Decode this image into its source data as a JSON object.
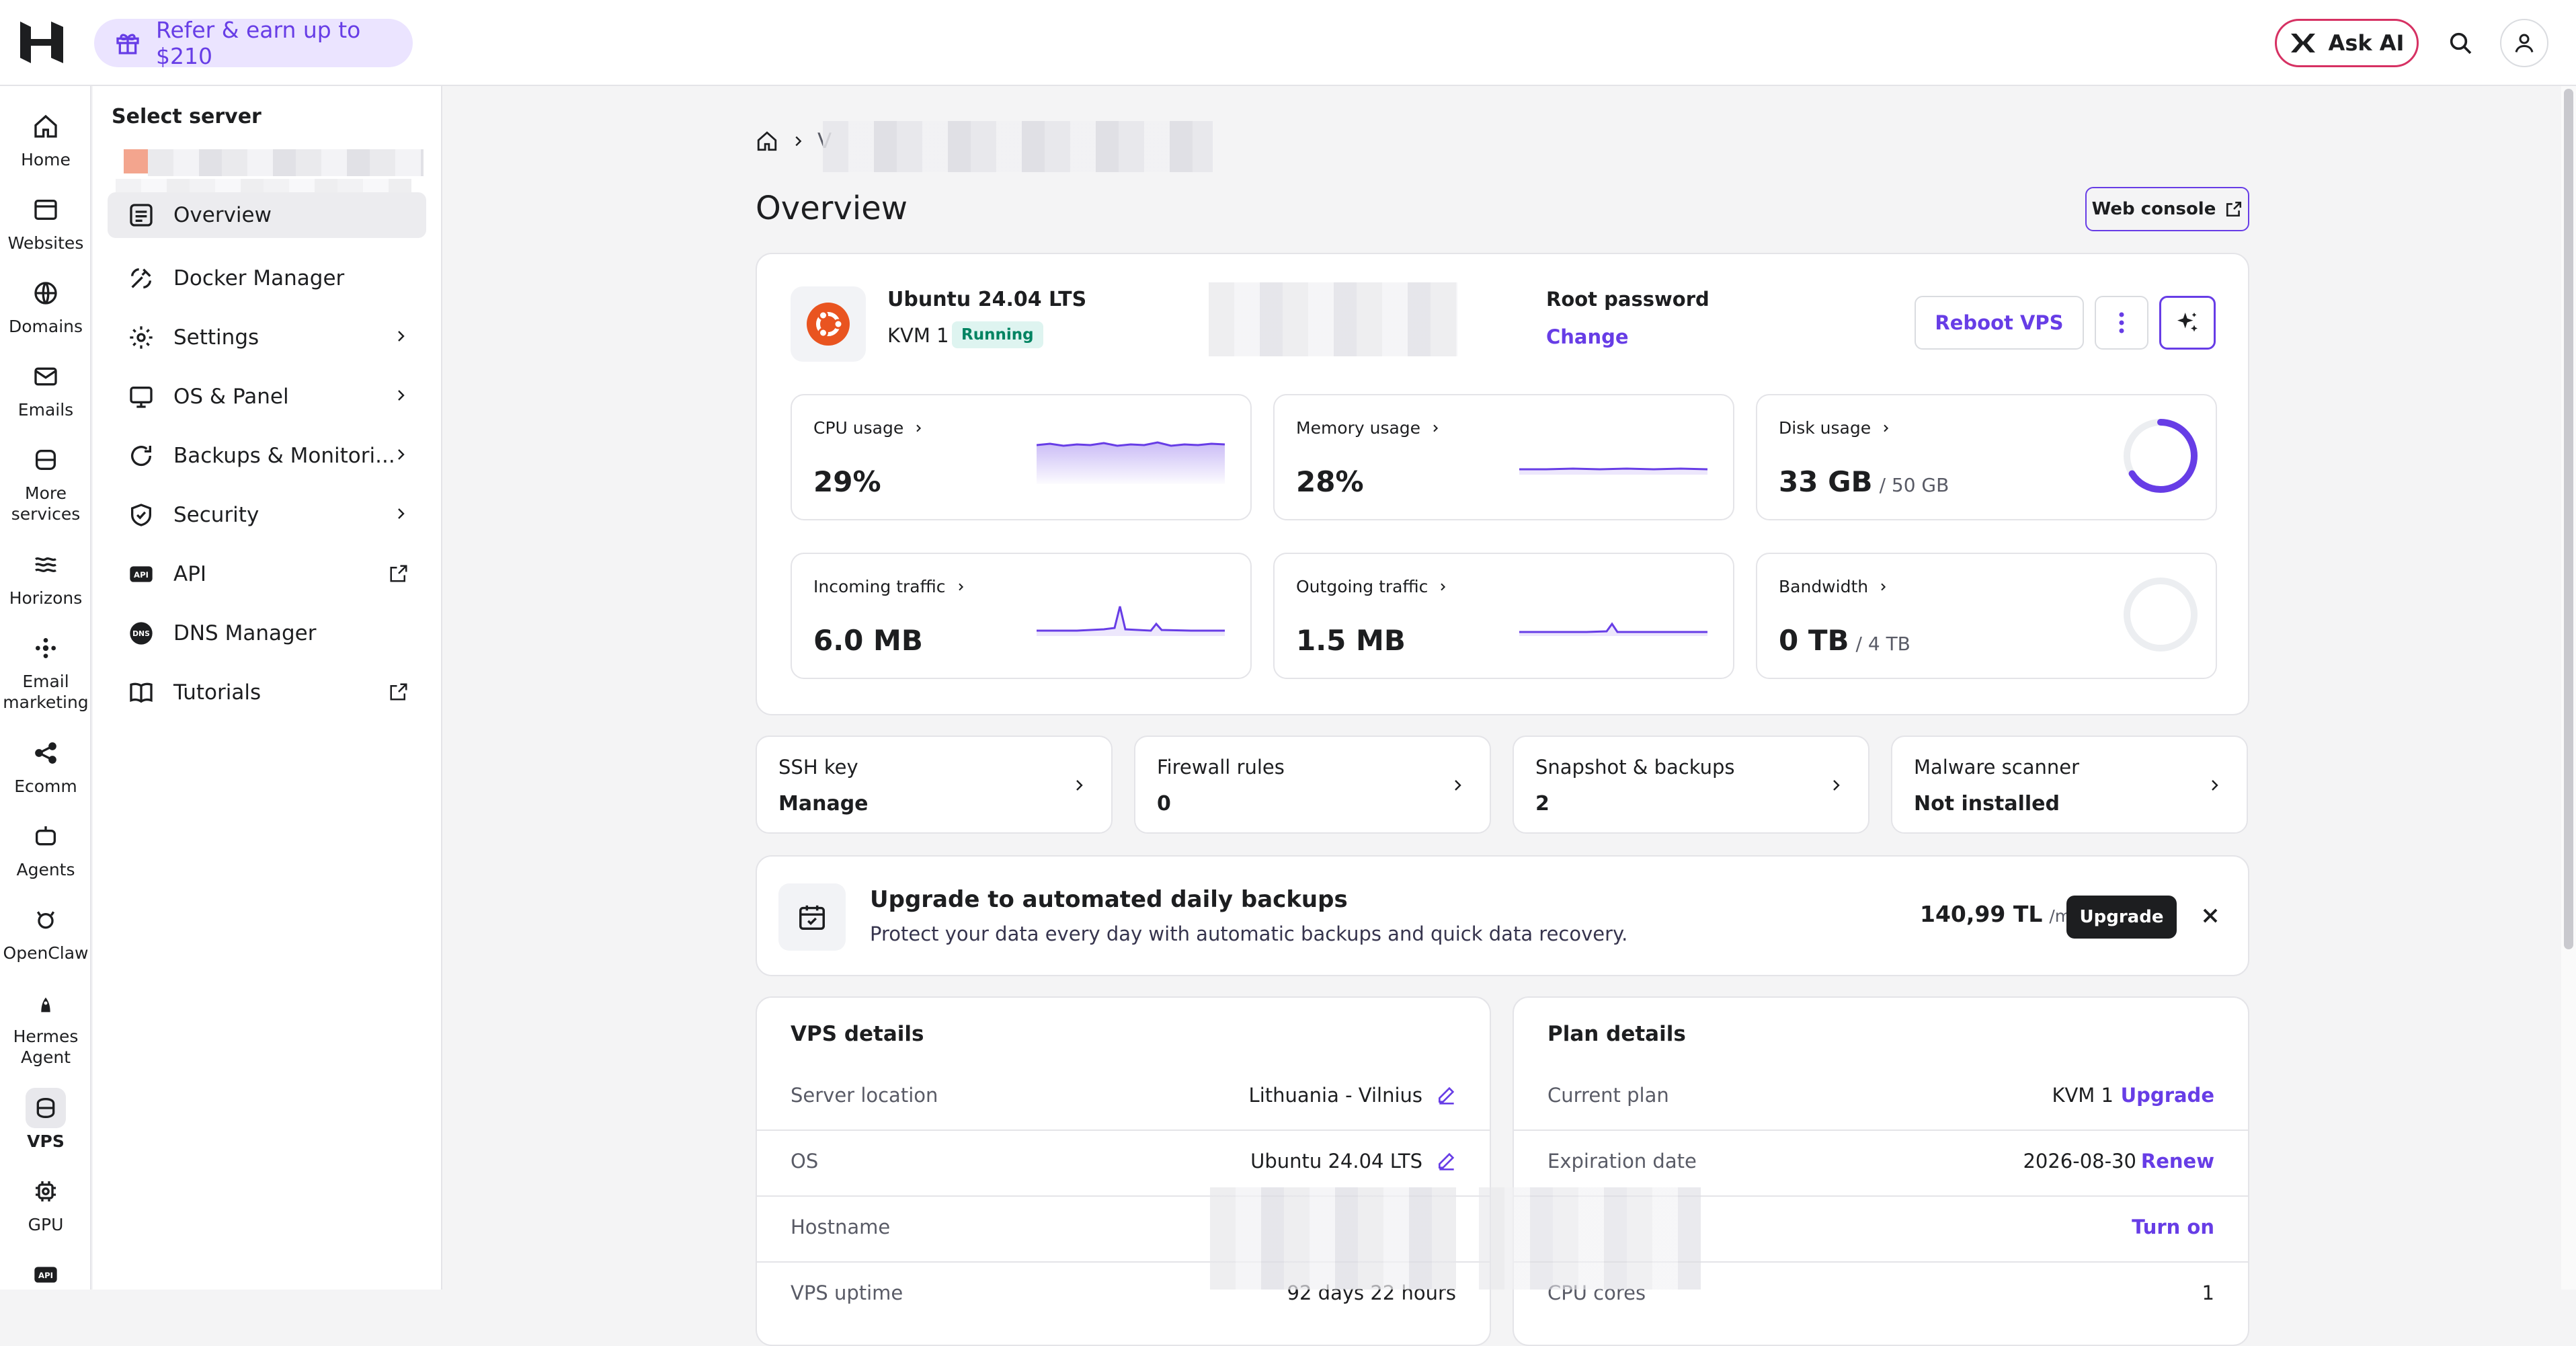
{
  "topbar": {
    "refer_label": "Refer & earn up to $210",
    "ask_ai_label": "Ask AI"
  },
  "rail": [
    {
      "label": "Home",
      "icon": "home-icon"
    },
    {
      "label": "Websites",
      "icon": "browser-icon"
    },
    {
      "label": "Domains",
      "icon": "globe-icon"
    },
    {
      "label": "Emails",
      "icon": "mail-icon"
    },
    {
      "label": "More services",
      "icon": "box-icon"
    },
    {
      "label": "Horizons",
      "icon": "horizons-icon"
    },
    {
      "label": "Email marketing",
      "icon": "reach-icon"
    },
    {
      "label": "Ecomm",
      "icon": "share-icon"
    },
    {
      "label": "Agents",
      "icon": "bot-icon"
    },
    {
      "label": "OpenClaw",
      "icon": "claw-icon"
    },
    {
      "label": "Hermes Agent",
      "icon": "hermes-icon"
    },
    {
      "label": "VPS",
      "icon": "server-icon",
      "active": true
    },
    {
      "label": "GPU",
      "icon": "chip-icon"
    },
    {
      "label": "",
      "icon": "api-icon"
    }
  ],
  "sidebar": {
    "title": "Select server",
    "items": [
      {
        "label": "Overview",
        "icon": "overview-icon",
        "active": true
      },
      {
        "label": "Docker Manager",
        "icon": "docker-icon"
      },
      {
        "label": "Settings",
        "icon": "gear-icon",
        "chevron": true
      },
      {
        "label": "OS & Panel",
        "icon": "monitor-icon",
        "chevron": true
      },
      {
        "label": "Backups & Monitori...",
        "icon": "refresh-icon",
        "chevron": true
      },
      {
        "label": "Security",
        "icon": "shield-icon",
        "chevron": true
      },
      {
        "label": "API",
        "icon": "api-icon",
        "external": true
      },
      {
        "label": "DNS Manager",
        "icon": "dns-icon"
      },
      {
        "label": "Tutorials",
        "icon": "book-icon",
        "external": true
      }
    ]
  },
  "breadcrumb": {
    "partial": "V"
  },
  "page": {
    "title": "Overview",
    "web_console_label": "Web console"
  },
  "server": {
    "os": "Ubuntu 24.04 LTS",
    "plan": "KVM 1",
    "status": "Running",
    "root_password_label": "Root password",
    "change_label": "Change",
    "reboot_label": "Reboot VPS"
  },
  "metrics": {
    "cpu": {
      "label": "CPU usage",
      "value": "29%"
    },
    "memory": {
      "label": "Memory usage",
      "value": "28%"
    },
    "disk": {
      "label": "Disk usage",
      "value": "33 GB",
      "total": "/ 50 GB",
      "fraction": 0.66
    },
    "incoming": {
      "label": "Incoming traffic",
      "value": "6.0 MB"
    },
    "outgoing": {
      "label": "Outgoing traffic",
      "value": "1.5 MB"
    },
    "bandwidth": {
      "label": "Bandwidth",
      "value": "0 TB",
      "total": "/ 4 TB",
      "fraction": 0
    }
  },
  "quick": [
    {
      "label": "SSH key",
      "value": "Manage"
    },
    {
      "label": "Firewall rules",
      "value": "0"
    },
    {
      "label": "Snapshot & backups",
      "value": "2"
    },
    {
      "label": "Malware scanner",
      "value": "Not installed"
    }
  ],
  "promo": {
    "title": "Upgrade to automated daily backups",
    "subtitle": "Protect your data every day with automatic backups and quick data recovery.",
    "price": "140,99 TL",
    "period": "/mo",
    "button": "Upgrade"
  },
  "vps_details": {
    "title": "VPS details",
    "rows": [
      {
        "label": "Server location",
        "value": "Lithuania - Vilnius"
      },
      {
        "label": "OS",
        "value": "Ubuntu 24.04 LTS"
      },
      {
        "label": "Hostname",
        "value": ""
      },
      {
        "label": "VPS uptime",
        "value": "92 days 22 hours"
      }
    ]
  },
  "plan_details": {
    "title": "Plan details",
    "rows": [
      {
        "label": "Current plan",
        "value": "KVM 1",
        "action": "Upgrade"
      },
      {
        "label": "Expiration date",
        "value": "2026-08-30",
        "action": "Renew"
      },
      {
        "label": "",
        "value": "",
        "action": "Turn on"
      },
      {
        "label": "CPU cores",
        "value": "1",
        "action": ""
      }
    ]
  },
  "colors": {
    "accent": "#673de6",
    "running_bg": "#def4f0",
    "running_fg": "#008361",
    "ubuntu": "#e95420"
  }
}
